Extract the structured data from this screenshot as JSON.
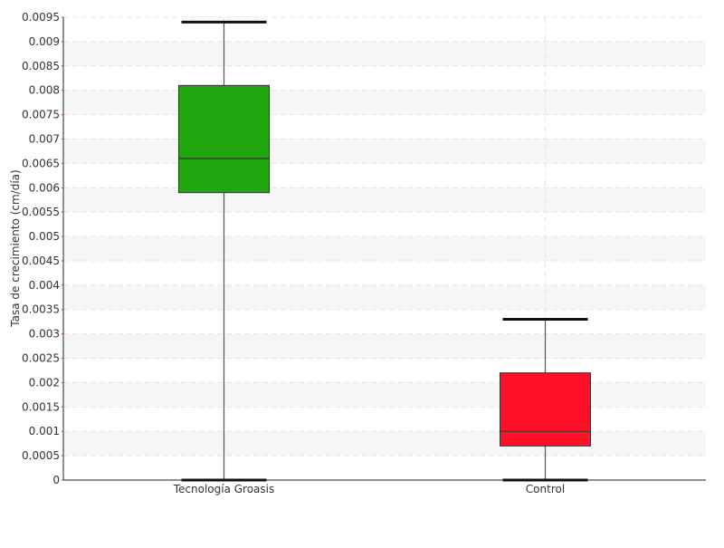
{
  "chart_data": {
    "type": "box",
    "ylabel": "Tasa de crecimiento (cm/día)",
    "ylim": [
      0,
      0.0095
    ],
    "ytick_step": 0.0005,
    "yticks": [
      "0",
      "0.0005",
      "0.001",
      "0.0015",
      "0.002",
      "0.0025",
      "0.003",
      "0.0035",
      "0.004",
      "0.0045",
      "0.005",
      "0.0055",
      "0.006",
      "0.0065",
      "0.007",
      "0.0075",
      "0.008",
      "0.0085",
      "0.009",
      "0.0095"
    ],
    "grid": true,
    "categories": [
      "Tecnología Groasis",
      "Control"
    ],
    "boxes": [
      {
        "category": "Tecnología Groasis",
        "min": 0,
        "q1": 0.0059,
        "median": 0.0066,
        "q3": 0.0081,
        "max": 0.0094,
        "color": "#22a60f"
      },
      {
        "category": "Control",
        "min": 0,
        "q1": 0.0007,
        "median": 0.001,
        "q3": 0.0022,
        "max": 0.0033,
        "color": "#ff1027"
      }
    ]
  }
}
